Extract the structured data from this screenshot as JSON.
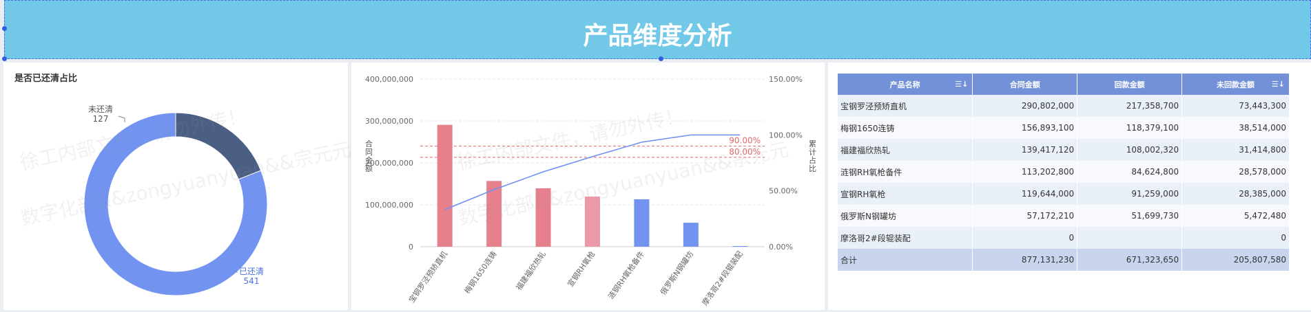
{
  "header": {
    "title": "产品维度分析"
  },
  "donut": {
    "title": "是否已还清占比",
    "colors": {
      "cleared": "#7293f0",
      "uncleared": "#4b5f85"
    },
    "slices": [
      {
        "label": "已还清",
        "value": 541
      },
      {
        "label": "未还清",
        "value": 127
      }
    ]
  },
  "pareto": {
    "left_axis_title": "合同金额",
    "right_axis_title": "累计占比",
    "colors": {
      "bar_red": "#e6808c",
      "bar_pink": "#eb98a7",
      "bar_blue": "#7294f0",
      "line": "#6b8ef2",
      "ref_line": "#e06a6a"
    }
  },
  "chart_data": {
    "type": "bar",
    "categories": [
      "宝钢罗泾预矫直机",
      "梅钢1650连铸",
      "福建福欣热轧",
      "宣钢RH氧枪",
      "涟钢RH氧枪备件",
      "俄罗斯N钢罐坊",
      "摩洛哥2#段辊装配"
    ],
    "series": [
      {
        "values": [
          290802000,
          156893100,
          139417120,
          119644000,
          113202800,
          57172210,
          0
        ]
      },
      {
        "values": [
          33.2,
          51.1,
          67.0,
          80.6,
          93.5,
          100.0,
          100.0
        ]
      }
    ],
    "bar_colors": [
      "red",
      "red",
      "red",
      "pink",
      "blue",
      "blue",
      "blue"
    ],
    "left_ticks": [
      "0",
      "100,000,000",
      "200,000,000",
      "300,000,000",
      "400,000,000"
    ],
    "right_ticks": [
      "0.00%",
      "50.00%",
      "100.00%",
      "150.00%"
    ],
    "ylim": [
      0,
      400000000
    ],
    "y2lim": [
      0,
      150
    ],
    "reference_lines": [
      {
        "label": "90.00%",
        "value": 90
      },
      {
        "label": "80.00%",
        "value": 80
      }
    ]
  },
  "table": {
    "headers": [
      "产品名称",
      "合同金额",
      "回款金额",
      "未回款金额"
    ],
    "rows": [
      [
        "宝钢罗泾预矫直机",
        "290,802,000",
        "217,358,700",
        "73,443,300"
      ],
      [
        "梅钢1650连铸",
        "156,893,100",
        "118,379,100",
        "38,514,000"
      ],
      [
        "福建福欣热轧",
        "139,417,120",
        "108,002,320",
        "31,414,800"
      ],
      [
        "涟钢RH氧枪备件",
        "113,202,800",
        "84,624,800",
        "28,578,000"
      ],
      [
        "宣钢RH氧枪",
        "119,644,000",
        "91,259,000",
        "28,385,000"
      ],
      [
        "俄罗斯N钢罐坊",
        "57,172,210",
        "51,699,730",
        "5,472,480"
      ],
      [
        "摩洛哥2#段辊装配",
        "0",
        "",
        "0"
      ]
    ],
    "total": [
      "合计",
      "877,131,230",
      "671,323,650",
      "205,807,580"
    ]
  },
  "watermark": {
    "line1": "徐工内部文件，请勿外传！",
    "line2": "数字化部&&zongyuanyuan&&宗元元"
  }
}
